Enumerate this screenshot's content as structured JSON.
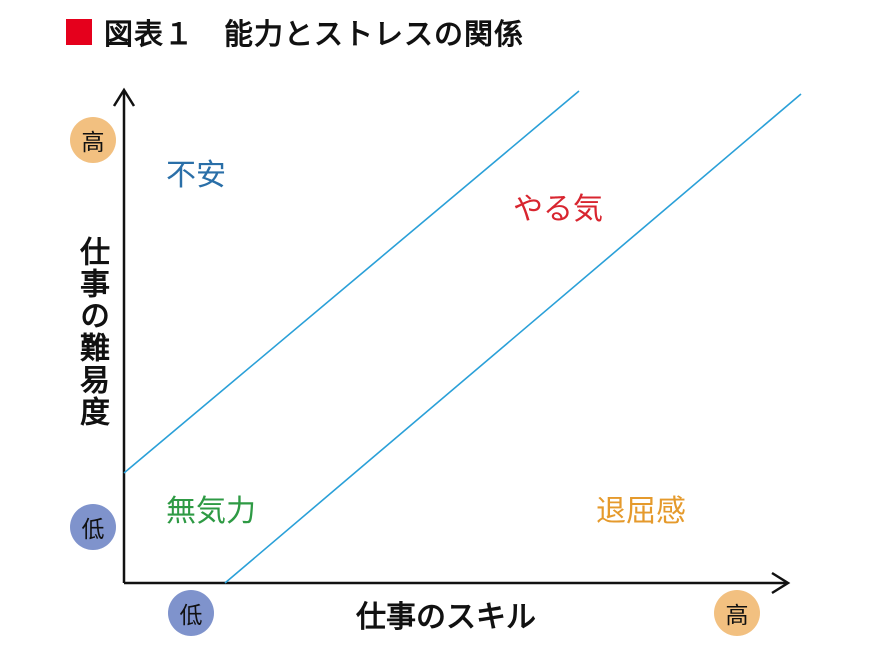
{
  "title": {
    "text": "図表１　能力とストレスの関係",
    "marker_color": "#e5001c"
  },
  "axes": {
    "x_label": "仕事のスキル",
    "y_label": "仕事の難易度",
    "x_low": "低",
    "x_high": "高",
    "y_low": "低",
    "y_high": "高",
    "low_badge_color": "#7f93cc",
    "high_badge_color": "#f2c080"
  },
  "regions": {
    "anxiety": {
      "text": "不安",
      "color": "#2a6fa8"
    },
    "motivation": {
      "text": "やる気",
      "color": "#d8252f"
    },
    "apathy": {
      "text": "無気力",
      "color": "#2e9a44"
    },
    "boredom": {
      "text": "退屈感",
      "color": "#e59a2c"
    }
  },
  "line_color": "#2aa0d8"
}
